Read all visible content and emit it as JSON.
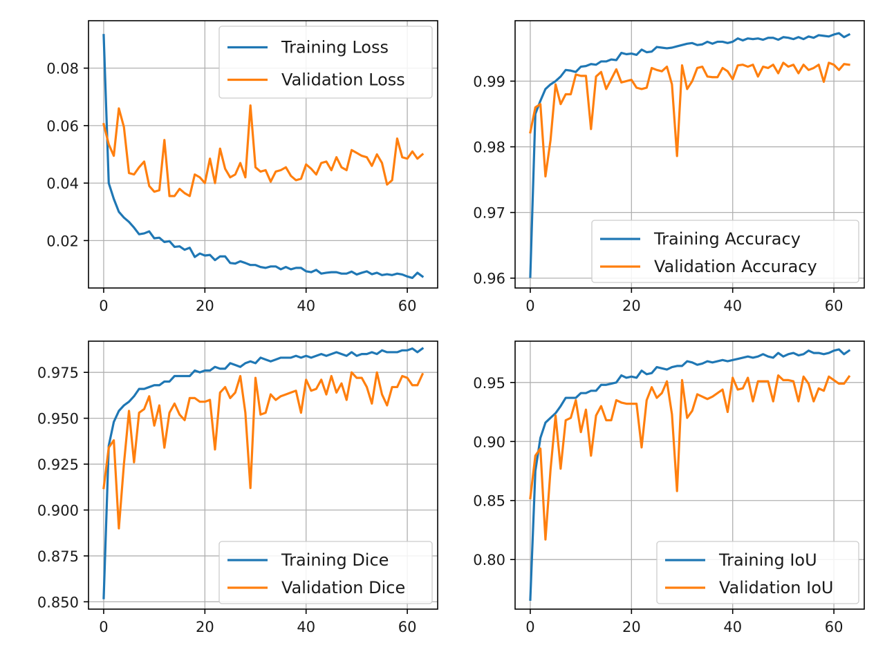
{
  "chart_data": [
    {
      "type": "line",
      "x": [
        0,
        1,
        2,
        3,
        4,
        5,
        6,
        7,
        8,
        9,
        10,
        11,
        12,
        13,
        14,
        15,
        16,
        17,
        18,
        19,
        20,
        21,
        22,
        23,
        24,
        25,
        26,
        27,
        28,
        29,
        30,
        31,
        32,
        33,
        34,
        35,
        36,
        37,
        38,
        39,
        40,
        41,
        42,
        43,
        44,
        45,
        46,
        47,
        48,
        49,
        50,
        51,
        52,
        53,
        54,
        55,
        56,
        57,
        58,
        59,
        60,
        61,
        62,
        63
      ],
      "xlim": [
        -3,
        66
      ],
      "ylim": [
        0.0035,
        0.0965
      ],
      "xticks": [
        0,
        20,
        40,
        60
      ],
      "xtick_labels": [
        "0",
        "20",
        "40",
        "60"
      ],
      "yticks": [
        0.02,
        0.04,
        0.06,
        0.08
      ],
      "ytick_labels": [
        "0.02",
        "0.04",
        "0.06",
        "0.08"
      ],
      "grid": true,
      "legend_position": "upper right",
      "series": [
        {
          "name": "Training Loss",
          "color": "#1f77b4",
          "values": [
            0.0915,
            0.04,
            0.0345,
            0.03,
            0.028,
            0.0265,
            0.0245,
            0.0222,
            0.0225,
            0.0232,
            0.0208,
            0.021,
            0.0195,
            0.0198,
            0.0178,
            0.018,
            0.0168,
            0.0175,
            0.0143,
            0.0155,
            0.0148,
            0.015,
            0.0132,
            0.0145,
            0.0145,
            0.0122,
            0.012,
            0.0128,
            0.0122,
            0.0115,
            0.0115,
            0.0108,
            0.0105,
            0.011,
            0.011,
            0.01,
            0.0108,
            0.01,
            0.0105,
            0.0105,
            0.0093,
            0.009,
            0.0098,
            0.0085,
            0.0088,
            0.009,
            0.009,
            0.0085,
            0.0085,
            0.0092,
            0.0082,
            0.0088,
            0.0093,
            0.0083,
            0.0088,
            0.008,
            0.0083,
            0.008,
            0.0085,
            0.0082,
            0.0075,
            0.007,
            0.0088,
            0.0075
          ]
        },
        {
          "name": "Validation Loss",
          "color": "#ff7f0e",
          "values": [
            0.0605,
            0.0535,
            0.0495,
            0.066,
            0.0595,
            0.0435,
            0.043,
            0.0455,
            0.0475,
            0.039,
            0.037,
            0.0375,
            0.055,
            0.0355,
            0.0355,
            0.038,
            0.0365,
            0.0355,
            0.043,
            0.042,
            0.04,
            0.0485,
            0.04,
            0.052,
            0.045,
            0.042,
            0.043,
            0.047,
            0.042,
            0.067,
            0.0455,
            0.044,
            0.0445,
            0.0405,
            0.044,
            0.0445,
            0.0455,
            0.0425,
            0.041,
            0.0415,
            0.0465,
            0.045,
            0.043,
            0.047,
            0.0475,
            0.0445,
            0.049,
            0.0455,
            0.0445,
            0.0515,
            0.0505,
            0.0495,
            0.049,
            0.046,
            0.05,
            0.047,
            0.0395,
            0.041,
            0.0555,
            0.049,
            0.0485,
            0.051,
            0.0485,
            0.05
          ]
        }
      ]
    },
    {
      "type": "line",
      "x": [
        0,
        1,
        2,
        3,
        4,
        5,
        6,
        7,
        8,
        9,
        10,
        11,
        12,
        13,
        14,
        15,
        16,
        17,
        18,
        19,
        20,
        21,
        22,
        23,
        24,
        25,
        26,
        27,
        28,
        29,
        30,
        31,
        32,
        33,
        34,
        35,
        36,
        37,
        38,
        39,
        40,
        41,
        42,
        43,
        44,
        45,
        46,
        47,
        48,
        49,
        50,
        51,
        52,
        53,
        54,
        55,
        56,
        57,
        58,
        59,
        60,
        61,
        62,
        63
      ],
      "xlim": [
        -3,
        66
      ],
      "ylim": [
        0.9585,
        0.9992
      ],
      "xticks": [
        0,
        20,
        40,
        60
      ],
      "xtick_labels": [
        "0",
        "20",
        "40",
        "60"
      ],
      "yticks": [
        0.96,
        0.97,
        0.98,
        0.99
      ],
      "ytick_labels": [
        "0.96",
        "0.97",
        "0.98",
        "0.99"
      ],
      "grid": true,
      "legend_position": "lower right",
      "series": [
        {
          "name": "Training Accuracy",
          "color": "#1f77b4",
          "values": [
            0.9602,
            0.985,
            0.987,
            0.9888,
            0.9895,
            0.99,
            0.9907,
            0.9917,
            0.9916,
            0.9914,
            0.9922,
            0.9923,
            0.9926,
            0.9925,
            0.993,
            0.993,
            0.9933,
            0.9932,
            0.9943,
            0.9941,
            0.9942,
            0.994,
            0.9948,
            0.9944,
            0.9945,
            0.9952,
            0.9951,
            0.995,
            0.9951,
            0.9953,
            0.9955,
            0.9957,
            0.9958,
            0.9955,
            0.9956,
            0.996,
            0.9957,
            0.996,
            0.996,
            0.9958,
            0.996,
            0.9965,
            0.9962,
            0.9965,
            0.9964,
            0.9965,
            0.9963,
            0.9966,
            0.9966,
            0.9963,
            0.9967,
            0.9966,
            0.9964,
            0.9967,
            0.9964,
            0.9968,
            0.9966,
            0.997,
            0.9969,
            0.9968,
            0.9971,
            0.9973,
            0.9967,
            0.9971
          ]
        },
        {
          "name": "Validation Accuracy",
          "color": "#ff7f0e",
          "values": [
            0.9822,
            0.986,
            0.9865,
            0.9755,
            0.981,
            0.9895,
            0.9865,
            0.988,
            0.988,
            0.991,
            0.9908,
            0.9908,
            0.9827,
            0.9907,
            0.9914,
            0.9888,
            0.9903,
            0.9918,
            0.9898,
            0.99,
            0.9902,
            0.989,
            0.9888,
            0.989,
            0.992,
            0.9917,
            0.9915,
            0.9922,
            0.9895,
            0.9786,
            0.9924,
            0.9888,
            0.99,
            0.992,
            0.9922,
            0.9907,
            0.9906,
            0.9906,
            0.992,
            0.9915,
            0.9903,
            0.9924,
            0.9925,
            0.9922,
            0.9925,
            0.9907,
            0.9922,
            0.992,
            0.9925,
            0.9912,
            0.9928,
            0.9922,
            0.9925,
            0.9912,
            0.9925,
            0.9917,
            0.992,
            0.9925,
            0.9899,
            0.9928,
            0.9925,
            0.9917,
            0.9926,
            0.9925
          ]
        }
      ]
    },
    {
      "type": "line",
      "x": [
        0,
        1,
        2,
        3,
        4,
        5,
        6,
        7,
        8,
        9,
        10,
        11,
        12,
        13,
        14,
        15,
        16,
        17,
        18,
        19,
        20,
        21,
        22,
        23,
        24,
        25,
        26,
        27,
        28,
        29,
        30,
        31,
        32,
        33,
        34,
        35,
        36,
        37,
        38,
        39,
        40,
        41,
        42,
        43,
        44,
        45,
        46,
        47,
        48,
        49,
        50,
        51,
        52,
        53,
        54,
        55,
        56,
        57,
        58,
        59,
        60,
        61,
        62,
        63
      ],
      "xlim": [
        -3,
        66
      ],
      "ylim": [
        0.846,
        0.992
      ],
      "xticks": [
        0,
        20,
        40,
        60
      ],
      "xtick_labels": [
        "0",
        "20",
        "40",
        "60"
      ],
      "yticks": [
        0.85,
        0.875,
        0.9,
        0.925,
        0.95,
        0.975
      ],
      "ytick_labels": [
        "0.850",
        "0.875",
        "0.900",
        "0.925",
        "0.950",
        "0.975"
      ],
      "grid": true,
      "legend_position": "lower right",
      "series": [
        {
          "name": "Training Dice",
          "color": "#1f77b4",
          "values": [
            0.852,
            0.935,
            0.948,
            0.954,
            0.957,
            0.959,
            0.962,
            0.966,
            0.966,
            0.967,
            0.968,
            0.968,
            0.97,
            0.97,
            0.973,
            0.973,
            0.973,
            0.973,
            0.976,
            0.975,
            0.976,
            0.976,
            0.978,
            0.977,
            0.977,
            0.98,
            0.979,
            0.978,
            0.98,
            0.981,
            0.98,
            0.983,
            0.982,
            0.981,
            0.982,
            0.983,
            0.983,
            0.983,
            0.984,
            0.983,
            0.984,
            0.983,
            0.984,
            0.985,
            0.984,
            0.985,
            0.986,
            0.985,
            0.984,
            0.986,
            0.984,
            0.985,
            0.985,
            0.986,
            0.985,
            0.987,
            0.986,
            0.986,
            0.986,
            0.987,
            0.987,
            0.988,
            0.986,
            0.988
          ]
        },
        {
          "name": "Validation Dice",
          "color": "#ff7f0e",
          "values": [
            0.912,
            0.934,
            0.938,
            0.89,
            0.925,
            0.954,
            0.926,
            0.953,
            0.955,
            0.962,
            0.946,
            0.957,
            0.934,
            0.953,
            0.958,
            0.952,
            0.949,
            0.961,
            0.961,
            0.959,
            0.959,
            0.96,
            0.933,
            0.964,
            0.967,
            0.961,
            0.964,
            0.973,
            0.953,
            0.912,
            0.972,
            0.952,
            0.953,
            0.963,
            0.96,
            0.962,
            0.963,
            0.964,
            0.965,
            0.953,
            0.971,
            0.965,
            0.966,
            0.971,
            0.963,
            0.973,
            0.964,
            0.969,
            0.96,
            0.975,
            0.972,
            0.972,
            0.967,
            0.958,
            0.975,
            0.963,
            0.957,
            0.967,
            0.967,
            0.973,
            0.972,
            0.968,
            0.968,
            0.974
          ]
        }
      ]
    },
    {
      "type": "line",
      "x": [
        0,
        1,
        2,
        3,
        4,
        5,
        6,
        7,
        8,
        9,
        10,
        11,
        12,
        13,
        14,
        15,
        16,
        17,
        18,
        19,
        20,
        21,
        22,
        23,
        24,
        25,
        26,
        27,
        28,
        29,
        30,
        31,
        32,
        33,
        34,
        35,
        36,
        37,
        38,
        39,
        40,
        41,
        42,
        43,
        44,
        45,
        46,
        47,
        48,
        49,
        50,
        51,
        52,
        53,
        54,
        55,
        56,
        57,
        58,
        59,
        60,
        61,
        62,
        63
      ],
      "xlim": [
        -3,
        66
      ],
      "ylim": [
        0.758,
        0.985
      ],
      "xticks": [
        0,
        20,
        40,
        60
      ],
      "xtick_labels": [
        "0",
        "20",
        "40",
        "60"
      ],
      "yticks": [
        0.8,
        0.85,
        0.9,
        0.95
      ],
      "ytick_labels": [
        "0.80",
        "0.85",
        "0.90",
        "0.95"
      ],
      "grid": true,
      "legend_position": "lower right",
      "series": [
        {
          "name": "Training IoU",
          "color": "#1f77b4",
          "values": [
            0.766,
            0.875,
            0.903,
            0.916,
            0.92,
            0.924,
            0.93,
            0.937,
            0.937,
            0.937,
            0.941,
            0.941,
            0.943,
            0.943,
            0.948,
            0.948,
            0.949,
            0.95,
            0.956,
            0.954,
            0.955,
            0.954,
            0.96,
            0.957,
            0.958,
            0.963,
            0.962,
            0.961,
            0.963,
            0.964,
            0.964,
            0.968,
            0.967,
            0.965,
            0.966,
            0.968,
            0.967,
            0.968,
            0.969,
            0.968,
            0.969,
            0.97,
            0.971,
            0.972,
            0.971,
            0.972,
            0.974,
            0.972,
            0.971,
            0.975,
            0.972,
            0.974,
            0.975,
            0.973,
            0.974,
            0.977,
            0.975,
            0.975,
            0.974,
            0.975,
            0.977,
            0.978,
            0.974,
            0.977
          ]
        },
        {
          "name": "Validation IoU",
          "color": "#ff7f0e",
          "values": [
            0.852,
            0.888,
            0.894,
            0.817,
            0.876,
            0.922,
            0.877,
            0.918,
            0.92,
            0.935,
            0.908,
            0.927,
            0.888,
            0.922,
            0.93,
            0.918,
            0.918,
            0.935,
            0.933,
            0.932,
            0.932,
            0.932,
            0.895,
            0.935,
            0.946,
            0.937,
            0.941,
            0.951,
            0.923,
            0.858,
            0.952,
            0.92,
            0.926,
            0.94,
            0.938,
            0.936,
            0.938,
            0.941,
            0.944,
            0.925,
            0.954,
            0.944,
            0.945,
            0.954,
            0.934,
            0.951,
            0.951,
            0.951,
            0.934,
            0.956,
            0.952,
            0.952,
            0.951,
            0.934,
            0.955,
            0.949,
            0.934,
            0.945,
            0.943,
            0.955,
            0.952,
            0.949,
            0.949,
            0.955
          ]
        }
      ]
    }
  ]
}
